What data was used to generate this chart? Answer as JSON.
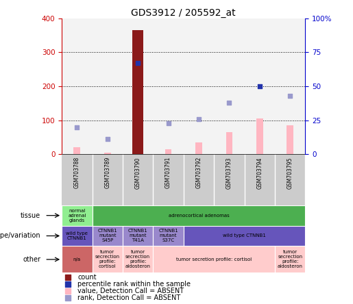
{
  "title": "GDS3912 / 205592_at",
  "samples": [
    "GSM703788",
    "GSM703789",
    "GSM703790",
    "GSM703791",
    "GSM703792",
    "GSM703793",
    "GSM703794",
    "GSM703795"
  ],
  "count_values": [
    null,
    null,
    365,
    null,
    null,
    null,
    null,
    null
  ],
  "count_color": "#8B1A1A",
  "percentile_values": [
    null,
    null,
    67,
    null,
    null,
    null,
    50,
    null
  ],
  "percentile_color": "#2233AA",
  "value_absent": [
    20,
    5,
    null,
    15,
    35,
    65,
    105,
    85
  ],
  "value_absent_color": "#FFB6C1",
  "rank_absent": [
    20,
    11,
    null,
    23,
    26,
    38,
    null,
    43
  ],
  "rank_absent_color": "#9999CC",
  "ylim_left": [
    0,
    400
  ],
  "ylim_right": [
    0,
    100
  ],
  "yticks_left": [
    0,
    100,
    200,
    300,
    400
  ],
  "yticks_right": [
    0,
    25,
    50,
    75,
    100
  ],
  "yticklabels_right": [
    "0",
    "25",
    "50",
    "75",
    "100%"
  ],
  "left_tick_color": "#CC0000",
  "right_tick_color": "#0000CC",
  "grid_lines": [
    100,
    200,
    300
  ],
  "tissue_cells": [
    {
      "text": "normal\nadrenal\nglands",
      "color": "#90EE90",
      "span": 1
    },
    {
      "text": "adrenocortical adenomas",
      "color": "#4CAF50",
      "span": 7
    }
  ],
  "geno_cells": [
    {
      "text": "wild type\nCTNNB1",
      "color": "#6655BB",
      "span": 1
    },
    {
      "text": "CTNNB1\nmutant\nS45P",
      "color": "#9988CC",
      "span": 1
    },
    {
      "text": "CTNNB1\nmutant\nT41A",
      "color": "#9988CC",
      "span": 1
    },
    {
      "text": "CTNNB1\nmutant\nS37C",
      "color": "#9988CC",
      "span": 1
    },
    {
      "text": "wild type CTNNB1",
      "color": "#6655BB",
      "span": 4
    }
  ],
  "other_cells": [
    {
      "text": "n/a",
      "color": "#CC6666",
      "span": 1
    },
    {
      "text": "tumor\nsecrection\nprofile:\ncortisol",
      "color": "#FFCCCC",
      "span": 1
    },
    {
      "text": "tumor\nsecrection\nprofile:\naldosteron",
      "color": "#FFCCCC",
      "span": 1
    },
    {
      "text": "tumor secretion profile: cortisol",
      "color": "#FFCCCC",
      "span": 4
    },
    {
      "text": "tumor\nsecrection\nprofile:\naldosteron",
      "color": "#FFCCCC",
      "span": 1
    }
  ],
  "row_labels": [
    "tissue",
    "genotype/variation",
    "other"
  ],
  "legend_items": [
    {
      "color": "#8B1A1A",
      "label": "count"
    },
    {
      "color": "#2233AA",
      "label": "percentile rank within the sample"
    },
    {
      "color": "#FFB6C1",
      "label": "value, Detection Call = ABSENT"
    },
    {
      "color": "#9999CC",
      "label": "rank, Detection Call = ABSENT"
    }
  ],
  "bar_width": 0.22,
  "count_bar_width": 0.35
}
